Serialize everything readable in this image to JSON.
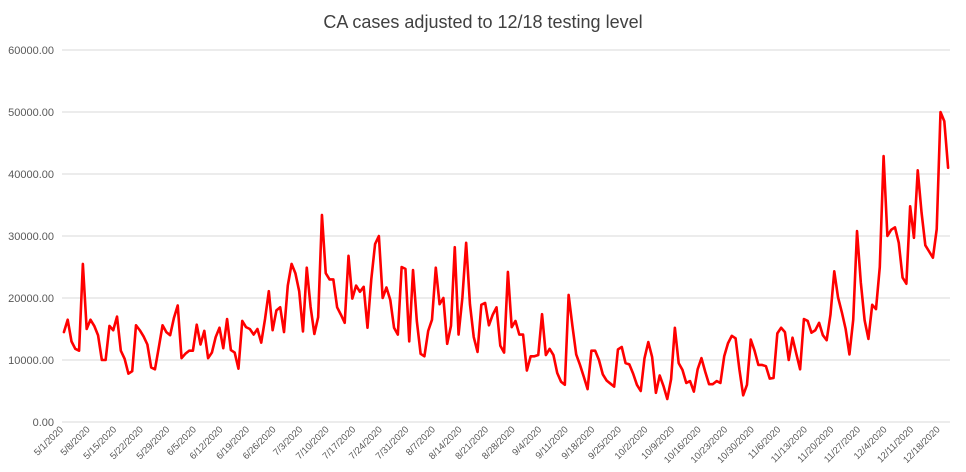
{
  "chart_data": {
    "type": "line",
    "title": "CA cases adjusted to 12/18 testing level",
    "xlabel": "",
    "ylabel": "",
    "ylim": [
      0,
      60000
    ],
    "y_ticks": [
      "0.00",
      "10000.00",
      "20000.00",
      "30000.00",
      "40000.00",
      "50000.00",
      "60000.00"
    ],
    "grid": true,
    "legend": "none",
    "line_color": "#ff0000",
    "x_tick_labels": [
      "5/1/2020",
      "5/8/2020",
      "5/15/2020",
      "5/22/2020",
      "5/29/2020",
      "6/5/2020",
      "6/12/2020",
      "6/19/2020",
      "6/26/2020",
      "7/3/2020",
      "7/10/2020",
      "7/17/2020",
      "7/24/2020",
      "7/31/2020",
      "8/7/2020",
      "8/14/2020",
      "8/21/2020",
      "8/28/2020",
      "9/4/2020",
      "9/11/2020",
      "9/18/2020",
      "9/25/2020",
      "10/2/2020",
      "10/9/2020",
      "10/16/2020",
      "10/23/2020",
      "10/30/2020",
      "11/6/2020",
      "11/13/2020",
      "11/20/2020",
      "11/27/2020",
      "12/4/2020",
      "12/11/2020",
      "12/18/2020"
    ],
    "series": [
      {
        "start_date": "5/1/2020",
        "values": [
          14500,
          16500,
          13000,
          11800,
          11500,
          25500,
          15000,
          16500,
          15500,
          14000,
          10000,
          10000,
          15500,
          14800,
          17000,
          11500,
          10200,
          7800,
          8200,
          15600,
          14800,
          13800,
          12500,
          8800,
          8500,
          12000,
          15600,
          14500,
          14000,
          16800,
          18800,
          10300,
          11000,
          11500,
          11500,
          15700,
          12500,
          14700,
          10300,
          11200,
          13700,
          15200,
          11900,
          16600,
          11600,
          11200,
          8600,
          16300,
          15300,
          15000,
          14100,
          15000,
          12800,
          16600,
          21100,
          14800,
          18000,
          18500,
          14500,
          22000,
          25500,
          24000,
          21100,
          14600,
          24900,
          18600,
          14200,
          16900,
          33400,
          24000,
          23000,
          23000,
          18500,
          17300,
          16000,
          26800,
          19900,
          22000,
          21000,
          21800,
          15200,
          23000,
          28700,
          30000,
          20000,
          21700,
          19700,
          15200,
          14100,
          25000,
          24700,
          13000,
          24500,
          16300,
          11000,
          10600,
          14700,
          16500,
          24900,
          19000,
          20000,
          12600,
          15500,
          28200,
          14100,
          20000,
          28900,
          19000,
          13700,
          11300,
          18900,
          19200,
          15600,
          17300,
          18500,
          12300,
          11200,
          24200,
          15300,
          16300,
          14100,
          14100,
          8300,
          10600,
          10600,
          10800,
          17400,
          10800,
          11800,
          10800,
          7900,
          6500,
          6000,
          20500,
          15500,
          10900,
          9200,
          7300,
          5300,
          11500,
          11500,
          10000,
          7700,
          6700,
          6200,
          5700,
          11700,
          12100,
          9500,
          9300,
          7800,
          6000,
          5000,
          10300,
          12900,
          10500,
          4700,
          7500,
          5800,
          3700,
          6900,
          15200,
          9500,
          8400,
          6300,
          6600,
          4900,
          8500,
          10300,
          8100,
          6100,
          6100,
          6600,
          6300,
          10600,
          12700,
          13900,
          13500,
          8500,
          4300,
          6000,
          13300,
          11500,
          9200,
          9200,
          9000,
          7000,
          7100,
          14300,
          15200,
          14500,
          10000,
          13600,
          11000,
          8500,
          16600,
          16300,
          14400,
          14800,
          16000,
          14000,
          13200,
          17300,
          24300,
          20100,
          17700,
          15000,
          10900,
          16500,
          30800,
          22500,
          16400,
          13400,
          18900,
          18200,
          25000,
          42900,
          30000,
          31000,
          31400,
          28900,
          23300,
          22300,
          34800,
          29700,
          40600,
          33800,
          28500,
          27500,
          26500,
          31100,
          50000,
          48500,
          41000
        ]
      }
    ]
  }
}
